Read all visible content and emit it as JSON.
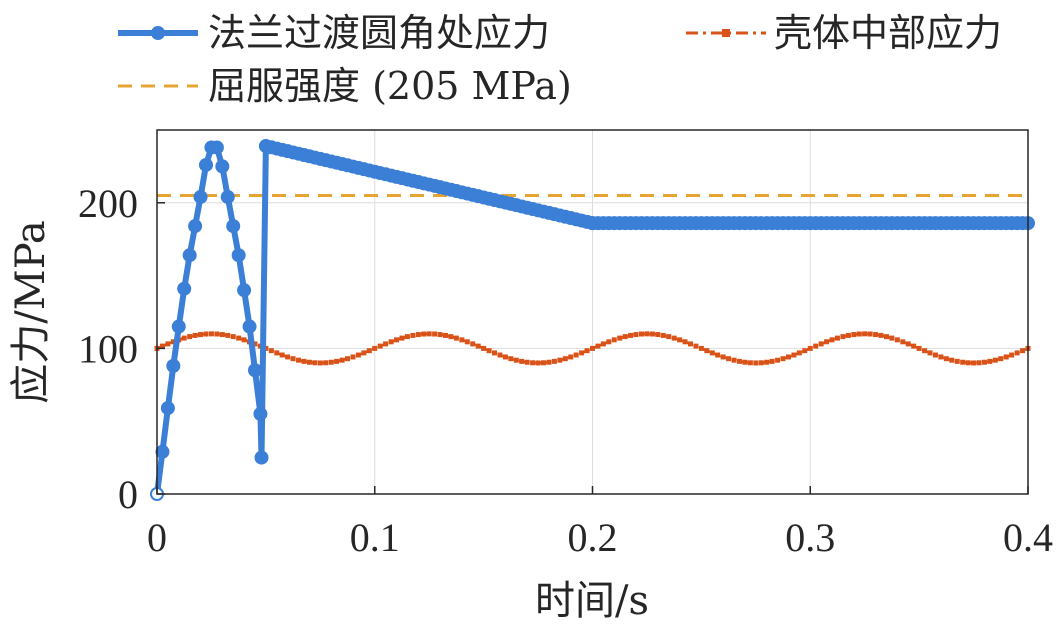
{
  "chart_data": {
    "type": "line",
    "xlabel": "时间/s",
    "ylabel": "应力/MPa",
    "xlim": [
      0,
      0.4
    ],
    "ylim": [
      0,
      250
    ],
    "xticks": [
      0,
      0.1,
      0.2,
      0.3,
      0.4
    ],
    "xtick_labels": [
      "0",
      "0.1",
      "0.2",
      "0.3",
      "0.4"
    ],
    "yticks": [
      0,
      100,
      200
    ],
    "ytick_labels": [
      "0",
      "100",
      "200"
    ],
    "grid": true,
    "legend_position": "top",
    "series": [
      {
        "name": "法兰过渡圆角处应力",
        "color": "#3b7fd6",
        "style": "solid-circle-markers",
        "x": [
          0,
          0.0025,
          0.005,
          0.0075,
          0.01,
          0.0125,
          0.015,
          0.0175,
          0.02,
          0.0225,
          0.025,
          0.0275,
          0.03,
          0.0325,
          0.035,
          0.0375,
          0.04,
          0.0425,
          0.045,
          0.0475,
          0.048,
          0.05,
          0.2,
          0.4
        ],
        "y": [
          0,
          29,
          59,
          88,
          115,
          141,
          164,
          184,
          204,
          226,
          238,
          238,
          225,
          204,
          184,
          164,
          140,
          115,
          85,
          55,
          25,
          239,
          186,
          186
        ]
      },
      {
        "name": "壳体中部应力",
        "color": "#d95319",
        "style": "dash-dot-square-markers",
        "baseline": 100,
        "amplitude": 10,
        "period": 0.1,
        "x_start": 0,
        "x_end": 0.4
      },
      {
        "name": "屈服强度 (205 MPa)",
        "color": "#e6a532",
        "style": "dashed",
        "y": 205
      }
    ]
  }
}
